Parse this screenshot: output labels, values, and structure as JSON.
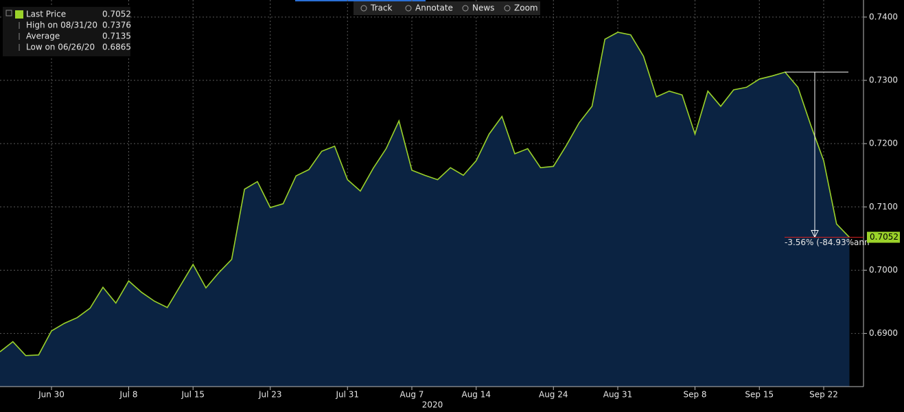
{
  "chart_data": {
    "type": "area",
    "legend": {
      "items": [
        {
          "name": "Last Price",
          "value": "0.7052"
        },
        {
          "name": "High on 08/31/20",
          "value": "0.7376"
        },
        {
          "name": "Average",
          "value": "0.7135"
        },
        {
          "name": "Low on 06/26/20",
          "value": "0.6865"
        }
      ]
    },
    "toolbar": [
      "Track",
      "Annotate",
      "News",
      "Zoom"
    ],
    "x_label": "2020",
    "annotation": "-3.56% (-84.93%ann",
    "last_price_label": "0.7052",
    "categories": [
      null,
      null,
      null,
      null,
      "Jun 30",
      null,
      null,
      null,
      null,
      null,
      "Jul 8",
      null,
      null,
      null,
      null,
      "Jul 15",
      null,
      null,
      null,
      null,
      null,
      "Jul 23",
      null,
      null,
      null,
      null,
      null,
      "Jul 31",
      null,
      null,
      null,
      null,
      "Aug 7",
      null,
      null,
      null,
      null,
      "Aug 14",
      null,
      null,
      null,
      null,
      null,
      "Aug 24",
      null,
      null,
      null,
      null,
      "Aug 31",
      null,
      null,
      null,
      null,
      null,
      "Sep 8",
      null,
      null,
      null,
      null,
      "Sep 15",
      null,
      null,
      null,
      null,
      "Sep 22",
      null,
      null
    ],
    "series": [
      {
        "name": "Last Price",
        "color": "#9bd22a",
        "fill": "#0b2342",
        "values": [
          0.6871,
          0.6887,
          0.6865,
          0.6866,
          0.6904,
          0.6916,
          0.6925,
          0.694,
          0.6973,
          0.6948,
          0.6983,
          0.6965,
          0.6951,
          0.6941,
          0.6975,
          0.7009,
          0.6972,
          0.6996,
          0.7017,
          0.7128,
          0.714,
          0.7099,
          0.7105,
          0.7149,
          0.7159,
          0.7188,
          0.7196,
          0.7143,
          0.7125,
          0.7161,
          0.7192,
          0.7236,
          0.7158,
          0.715,
          0.7143,
          0.7162,
          0.715,
          0.7173,
          0.7215,
          0.7243,
          0.7184,
          0.7192,
          0.7162,
          0.7164,
          0.7197,
          0.7233,
          0.7259,
          0.7365,
          0.7376,
          0.7372,
          0.7338,
          0.7274,
          0.7283,
          0.7277,
          0.7215,
          0.7283,
          0.7259,
          0.7285,
          0.7289,
          0.7302,
          0.7307,
          0.7313,
          0.7289,
          0.7229,
          0.7173,
          0.7073,
          0.7052
        ]
      }
    ],
    "ylim": [
      0.6816,
      0.7427
    ],
    "yticks": [
      {
        "value": 0.69,
        "label": "0.6900"
      },
      {
        "value": 0.7,
        "label": "0.7000"
      },
      {
        "value": 0.71,
        "label": "0.7100"
      },
      {
        "value": 0.72,
        "label": "0.7200"
      },
      {
        "value": 0.73,
        "label": "0.7300"
      },
      {
        "value": 0.74,
        "label": "0.7400"
      }
    ],
    "grid": true
  }
}
